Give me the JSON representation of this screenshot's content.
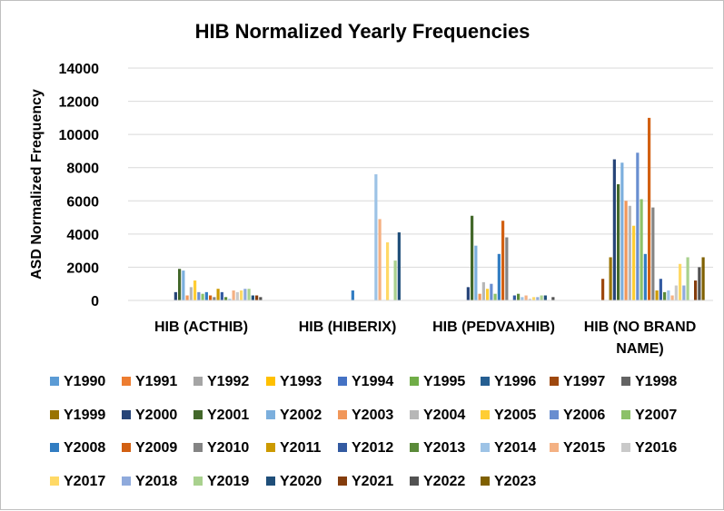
{
  "chart_data": {
    "type": "bar",
    "title": "HIB Normalized Yearly Frequencies",
    "xlabel": "",
    "ylabel": "ASD Normalized Frequency",
    "ylim": [
      0,
      14000
    ],
    "yticks": [
      "0",
      "2000",
      "4000",
      "6000",
      "8000",
      "10000",
      "12000",
      "14000"
    ],
    "grid": true,
    "legend_position": "bottom",
    "categories": [
      "HIB (ACTHIB)",
      "HIB (HIBERIX)",
      "HIB (PEDVAXHIB)",
      "HIB (NO BRAND NAME)"
    ],
    "series": [
      {
        "name": "Y1990",
        "color": "#5b9bd5",
        "values": [
          0,
          0,
          0,
          0
        ]
      },
      {
        "name": "Y1991",
        "color": "#ed7d31",
        "values": [
          0,
          0,
          0,
          0
        ]
      },
      {
        "name": "Y1992",
        "color": "#a5a5a5",
        "values": [
          0,
          0,
          0,
          0
        ]
      },
      {
        "name": "Y1993",
        "color": "#ffc000",
        "values": [
          0,
          0,
          0,
          0
        ]
      },
      {
        "name": "Y1994",
        "color": "#4472c4",
        "values": [
          0,
          0,
          0,
          0
        ]
      },
      {
        "name": "Y1995",
        "color": "#70ad47",
        "values": [
          0,
          0,
          0,
          0
        ]
      },
      {
        "name": "Y1996",
        "color": "#255e91",
        "values": [
          0,
          0,
          0,
          0
        ]
      },
      {
        "name": "Y1997",
        "color": "#9e480e",
        "values": [
          0,
          0,
          0,
          1300
        ]
      },
      {
        "name": "Y1998",
        "color": "#636363",
        "values": [
          0,
          0,
          0,
          0
        ]
      },
      {
        "name": "Y1999",
        "color": "#997300",
        "values": [
          0,
          0,
          0,
          2600
        ]
      },
      {
        "name": "Y2000",
        "color": "#264478",
        "values": [
          500,
          0,
          800,
          8500
        ]
      },
      {
        "name": "Y2001",
        "color": "#43682b",
        "values": [
          1900,
          0,
          5100,
          7000
        ]
      },
      {
        "name": "Y2002",
        "color": "#7cafdd",
        "values": [
          1800,
          0,
          3300,
          8300
        ]
      },
      {
        "name": "Y2003",
        "color": "#f1975a",
        "values": [
          300,
          0,
          400,
          6000
        ]
      },
      {
        "name": "Y2004",
        "color": "#b7b7b7",
        "values": [
          800,
          0,
          1100,
          5700
        ]
      },
      {
        "name": "Y2005",
        "color": "#ffcd33",
        "values": [
          1200,
          0,
          700,
          4500
        ]
      },
      {
        "name": "Y2006",
        "color": "#698ed0",
        "values": [
          500,
          0,
          1000,
          8900
        ]
      },
      {
        "name": "Y2007",
        "color": "#8cc168",
        "values": [
          400,
          0,
          400,
          6100
        ]
      },
      {
        "name": "Y2008",
        "color": "#327dc2",
        "values": [
          500,
          600,
          2800,
          2800
        ]
      },
      {
        "name": "Y2009",
        "color": "#d26012",
        "values": [
          300,
          0,
          4800,
          11000
        ]
      },
      {
        "name": "Y2010",
        "color": "#848484",
        "values": [
          200,
          0,
          3800,
          5600
        ]
      },
      {
        "name": "Y2011",
        "color": "#cc9a00",
        "values": [
          700,
          0,
          0,
          600
        ]
      },
      {
        "name": "Y2012",
        "color": "#335aa1",
        "values": [
          500,
          0,
          300,
          1300
        ]
      },
      {
        "name": "Y2013",
        "color": "#5a8a39",
        "values": [
          200,
          0,
          400,
          500
        ]
      },
      {
        "name": "Y2014",
        "color": "#9dc3e6",
        "values": [
          100,
          7600,
          200,
          600
        ]
      },
      {
        "name": "Y2015",
        "color": "#f4b183",
        "values": [
          600,
          4900,
          300,
          300
        ]
      },
      {
        "name": "Y2016",
        "color": "#c9c9c9",
        "values": [
          500,
          0,
          100,
          900
        ]
      },
      {
        "name": "Y2017",
        "color": "#ffd966",
        "values": [
          600,
          3500,
          200,
          2200
        ]
      },
      {
        "name": "Y2018",
        "color": "#8faadc",
        "values": [
          700,
          0,
          200,
          900
        ]
      },
      {
        "name": "Y2019",
        "color": "#a9d18e",
        "values": [
          700,
          2400,
          300,
          2600
        ]
      },
      {
        "name": "Y2020",
        "color": "#1f4e79",
        "values": [
          300,
          4100,
          300,
          0
        ]
      },
      {
        "name": "Y2021",
        "color": "#843c0c",
        "values": [
          300,
          0,
          0,
          1200
        ]
      },
      {
        "name": "Y2022",
        "color": "#525252",
        "values": [
          200,
          0,
          200,
          2000
        ]
      },
      {
        "name": "Y2023",
        "color": "#7f6000",
        "values": [
          0,
          0,
          0,
          2600
        ]
      }
    ]
  }
}
